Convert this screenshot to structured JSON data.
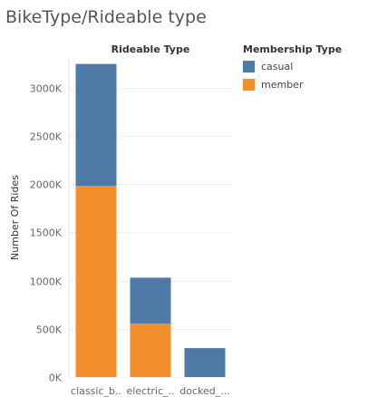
{
  "page_title": "BikeType/Rideable type",
  "legend": {
    "title": "Membership Type",
    "items": [
      {
        "label": "casual",
        "color": "#4e79a7"
      },
      {
        "label": "member",
        "color": "#f28e2b"
      }
    ]
  },
  "chart_data": {
    "type": "bar",
    "stacked": true,
    "title": "Rideable Type",
    "xlabel": "",
    "ylabel": "Number Of Rides",
    "categories": [
      "classic_b..",
      "electric_..",
      "docked_..."
    ],
    "series": [
      {
        "name": "member",
        "color": "#f28e2b",
        "values": [
          1980,
          555,
          0
        ]
      },
      {
        "name": "casual",
        "color": "#4e79a7",
        "values": [
          1265,
          475,
          300
        ]
      }
    ],
    "ylim": [
      0,
      3250
    ],
    "yticks": [
      0,
      500,
      1000,
      1500,
      2000,
      2500,
      3000
    ],
    "ytick_labels": [
      "0K",
      "500K",
      "1000K",
      "1500K",
      "2000K",
      "2500K",
      "3000K"
    ],
    "grid": true,
    "legend_position": "right"
  }
}
